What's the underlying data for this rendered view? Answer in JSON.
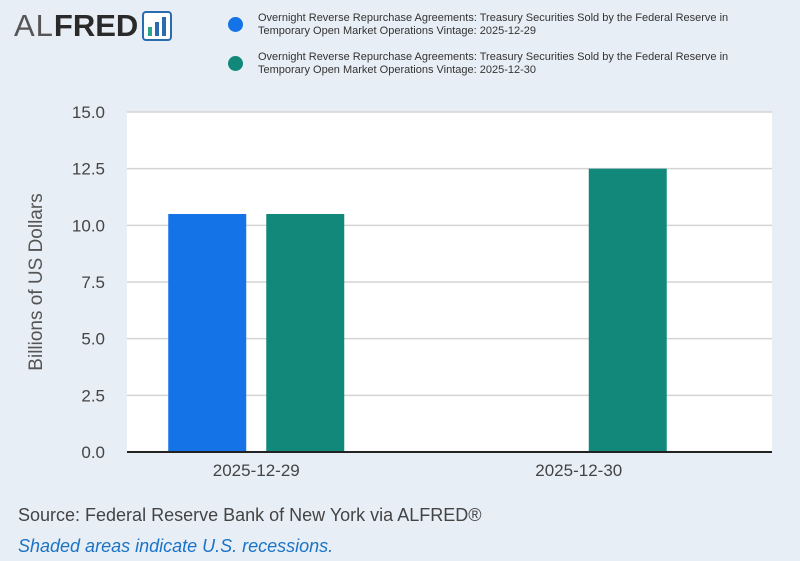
{
  "logo": {
    "prefix": "AL",
    "brand": "FRED",
    "icon": "fred-chart-icon"
  },
  "legend": [
    {
      "line1": "Overnight Reverse Repurchase Agreements: Treasury Securities Sold by the Federal Reserve in",
      "line2": "Temporary Open Market Operations Vintage: 2025-12-29",
      "color": "#1473e6"
    },
    {
      "line1": "Overnight Reverse Repurchase Agreements: Treasury Securities Sold by the Federal Reserve in",
      "line2": "Temporary Open Market Operations Vintage: 2025-12-30",
      "color": "#12887a"
    }
  ],
  "chart_data": {
    "type": "bar",
    "categories": [
      "2025-12-29",
      "2025-12-30"
    ],
    "series": [
      {
        "name": "Vintage: 2025-12-29",
        "values": [
          10.5,
          null
        ],
        "color": "#1473e6"
      },
      {
        "name": "Vintage: 2025-12-30",
        "values": [
          10.5,
          12.5
        ],
        "color": "#12887a"
      }
    ],
    "ylabel": "Billions of US Dollars",
    "ylim": [
      0,
      15
    ],
    "yticks": [
      "0.0",
      "2.5",
      "5.0",
      "7.5",
      "10.0",
      "12.5",
      "15.0"
    ],
    "grid": true
  },
  "footer": {
    "source": "Source: Federal Reserve Bank of New York via ALFRED®",
    "shaded": "Shaded areas indicate U.S. recessions."
  }
}
